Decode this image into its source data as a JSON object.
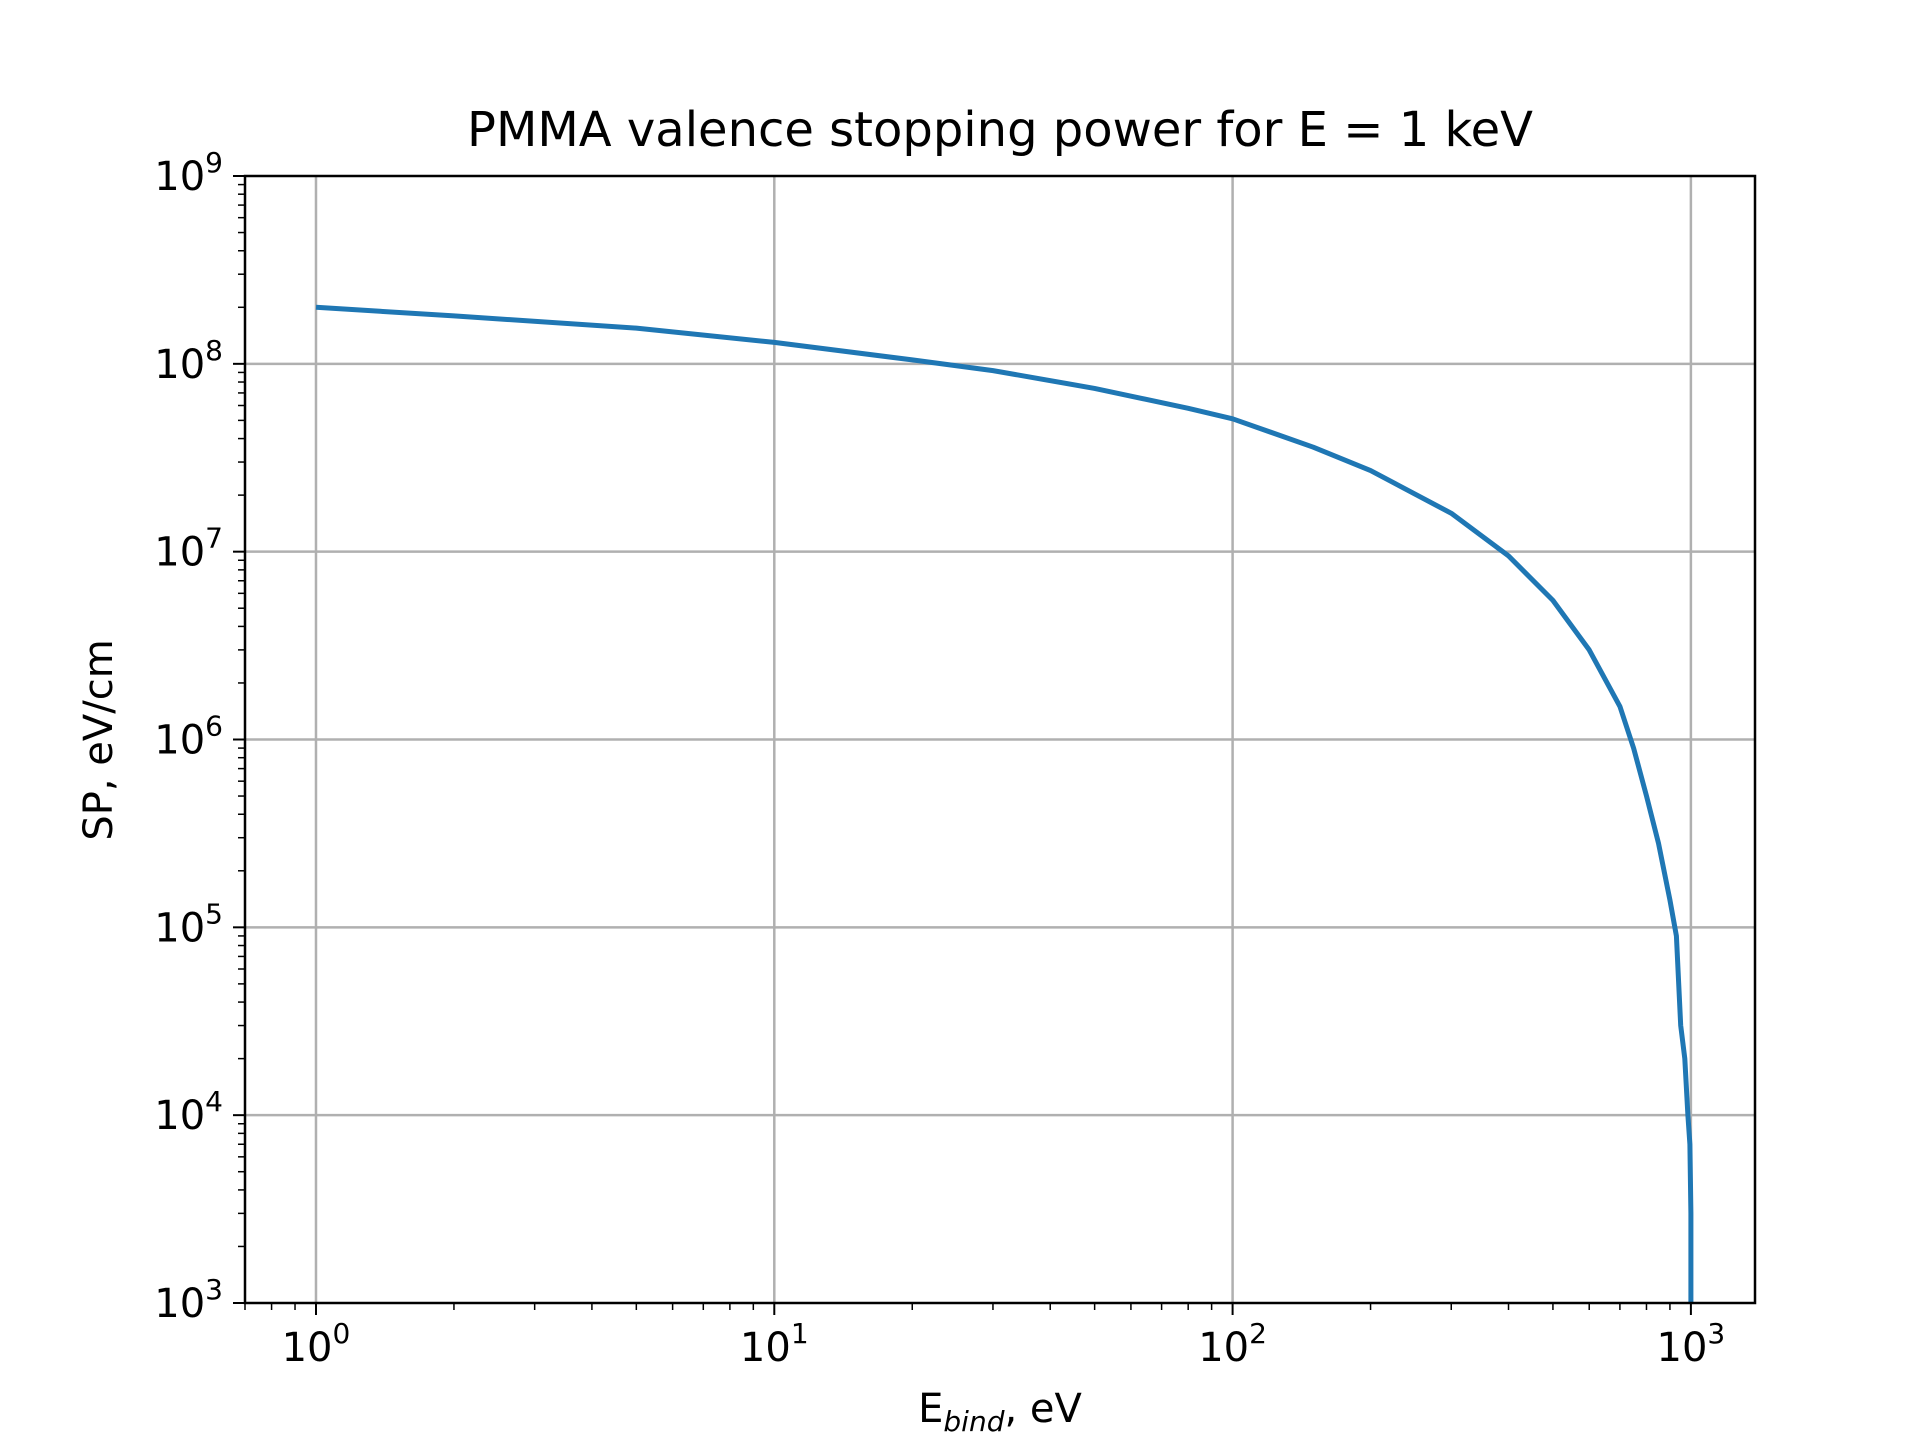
{
  "chart_data": {
    "type": "line",
    "title": "PMMA valence stopping power for E = 1 keV",
    "xlabel": {
      "main": "E",
      "sub": "bind",
      "rest": ", eV"
    },
    "ylabel": "SP, eV/cm",
    "xscale": "log",
    "yscale": "log",
    "xlim": [
      0.7,
      1380
    ],
    "ylim": [
      1000,
      1000000000
    ],
    "grid": true,
    "x_ticks": [
      {
        "base": "10",
        "exp": "0",
        "value": 1
      },
      {
        "base": "10",
        "exp": "1",
        "value": 10
      },
      {
        "base": "10",
        "exp": "2",
        "value": 100
      },
      {
        "base": "10",
        "exp": "3",
        "value": 1000
      }
    ],
    "y_ticks": [
      {
        "base": "10",
        "exp": "3",
        "value": 1000
      },
      {
        "base": "10",
        "exp": "4",
        "value": 10000
      },
      {
        "base": "10",
        "exp": "5",
        "value": 100000
      },
      {
        "base": "10",
        "exp": "6",
        "value": 1000000
      },
      {
        "base": "10",
        "exp": "7",
        "value": 10000000
      },
      {
        "base": "10",
        "exp": "8",
        "value": 100000000
      },
      {
        "base": "10",
        "exp": "9",
        "value": 1000000000
      }
    ],
    "series": [
      {
        "color": "#1f77b4",
        "x": [
          1,
          2,
          5,
          10,
          20,
          30,
          50,
          80,
          100,
          150,
          200,
          300,
          400,
          500,
          600,
          700,
          750,
          800,
          850,
          900,
          930,
          950,
          970,
          985,
          995,
          1000,
          1000
        ],
        "y": [
          200000000,
          180000000,
          155000000,
          130000000,
          105000000,
          92000000,
          74000000,
          58000000,
          51000000,
          36000000,
          27000000,
          16000000,
          9500000,
          5500000,
          3000000,
          1500000,
          900000,
          500000,
          280000,
          140000,
          90000,
          30000,
          20000,
          10000,
          7000,
          3000,
          1000
        ]
      }
    ]
  }
}
